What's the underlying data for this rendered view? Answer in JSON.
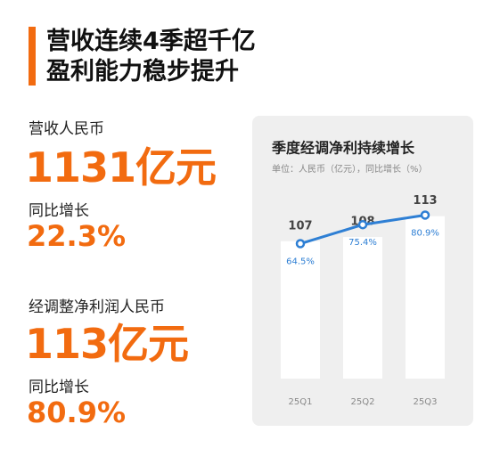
{
  "header": {
    "title_lines": [
      "营收连续4季超千亿",
      "盈利能力稳步提升"
    ]
  },
  "stats": [
    {
      "label": "营收人民币",
      "value": "1131亿元",
      "growth_label": "同比增长",
      "growth": "22.3%"
    },
    {
      "label": "经调整净利润人民币",
      "value": "113亿元",
      "growth_label": "同比增长",
      "growth": "80.9%"
    }
  ],
  "chart_data": {
    "type": "bar",
    "title": "季度经调净利持续增长",
    "subtitle": "单位：人民币（亿元），同比增长（%）",
    "categories": [
      "25Q1",
      "25Q2",
      "25Q3"
    ],
    "ylim": [
      74,
      120
    ],
    "y2lim": [
      -13,
      97
    ],
    "series": [
      {
        "name": "经调整净利润",
        "type": "bar",
        "color": "#ffffff",
        "values": [
          107,
          108,
          113
        ]
      },
      {
        "name": "同比增长",
        "type": "line",
        "axis": "y2",
        "color": "#2e7fd4",
        "values": [
          64.5,
          75.4,
          80.9
        ],
        "value_labels": [
          "64.5%",
          "75.4%",
          "80.9%"
        ]
      }
    ]
  }
}
